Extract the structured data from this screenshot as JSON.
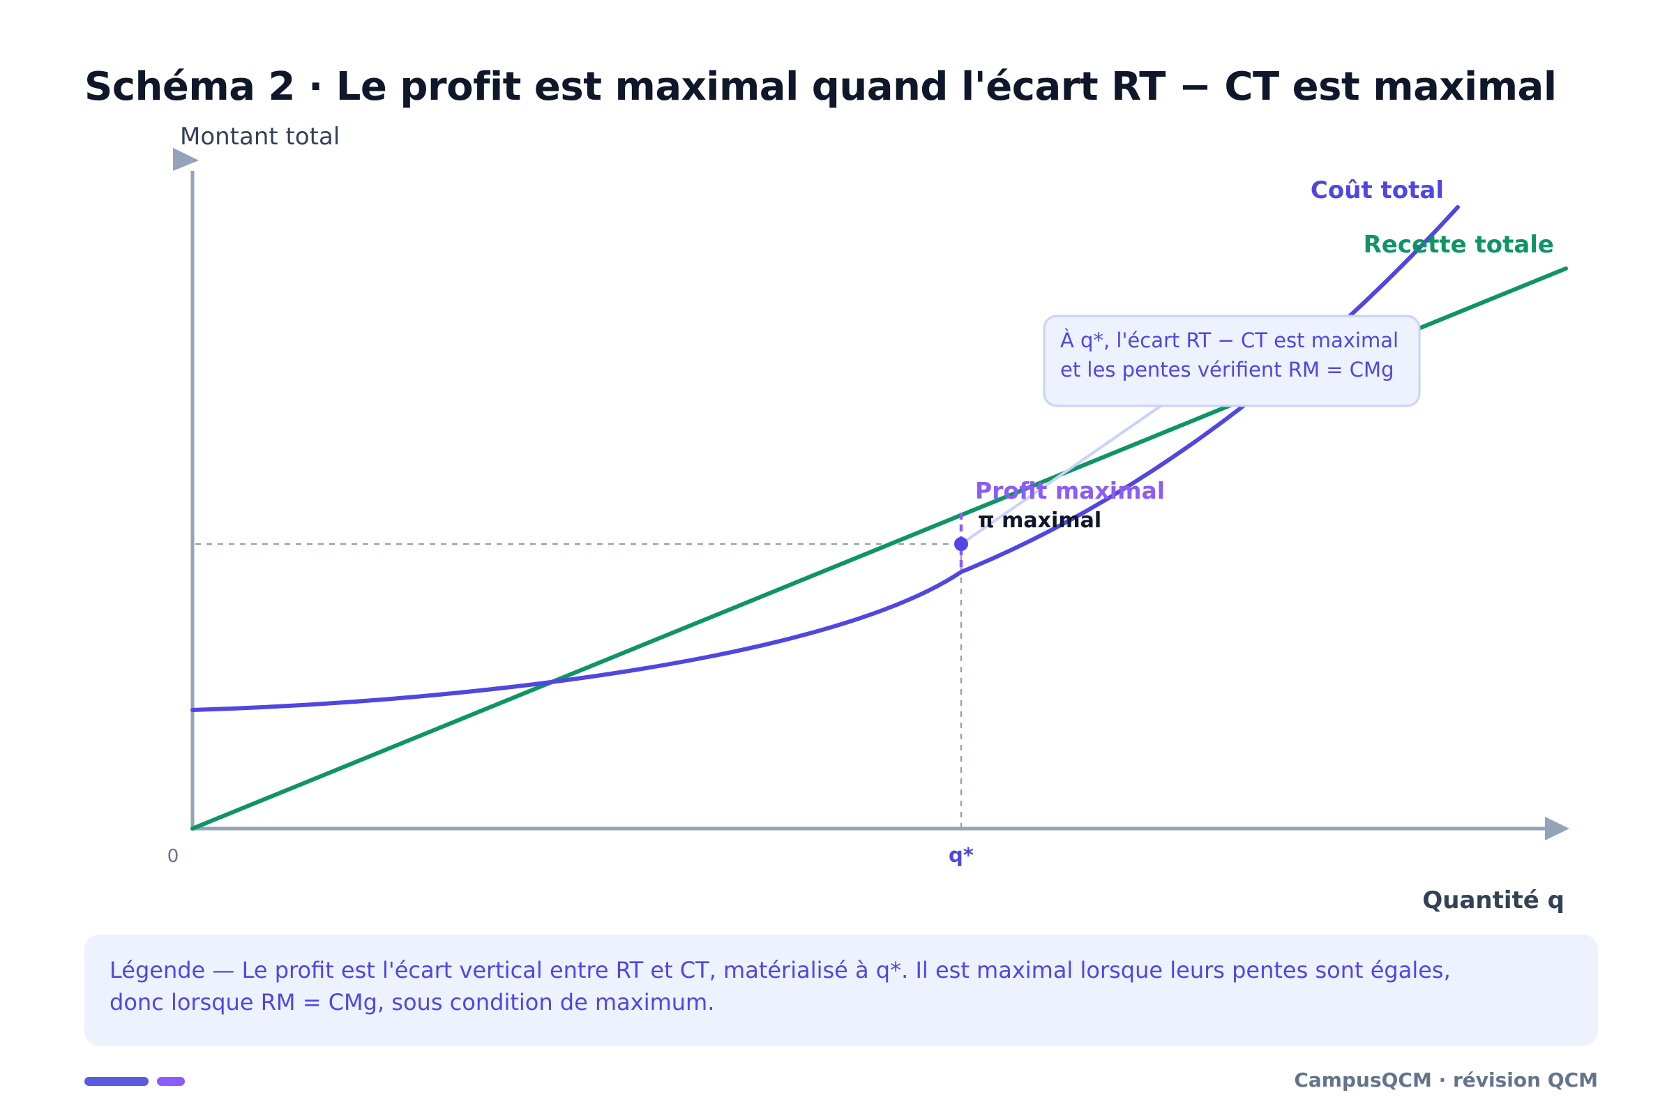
{
  "title": "Schéma 2 · Le profit est maximal quand l'écart RT − CT est maximal",
  "chart_data": {
    "type": "line",
    "ylabel": "Montant total",
    "xlabel": "Quantité q",
    "origin_label": "0",
    "x_tick_label": "q*",
    "series": [
      {
        "name": "Coût total",
        "color": "#5046e0"
      },
      {
        "name": "Recette totale",
        "color": "#0f9466"
      }
    ],
    "annotations": {
      "profit_label": "Profit maximal",
      "pi_label": "π maximal",
      "callout_line1": "À q*, l'écart RT − CT est maximal",
      "callout_line2": "et les pentes vérifient RM = CMg"
    },
    "colors": {
      "axis": "#94a3b8",
      "profit": "#8b5cf6",
      "marker": "#4f46e5"
    }
  },
  "legend": "Légende — Le profit est l'écart vertical entre RT et CT, matérialisé à q*. Il est maximal lorsque leurs pentes sont égales, donc lorsque RM = CMg, sous condition de maximum.",
  "footer": {
    "brand": "CampusQCM · révision QCM"
  }
}
